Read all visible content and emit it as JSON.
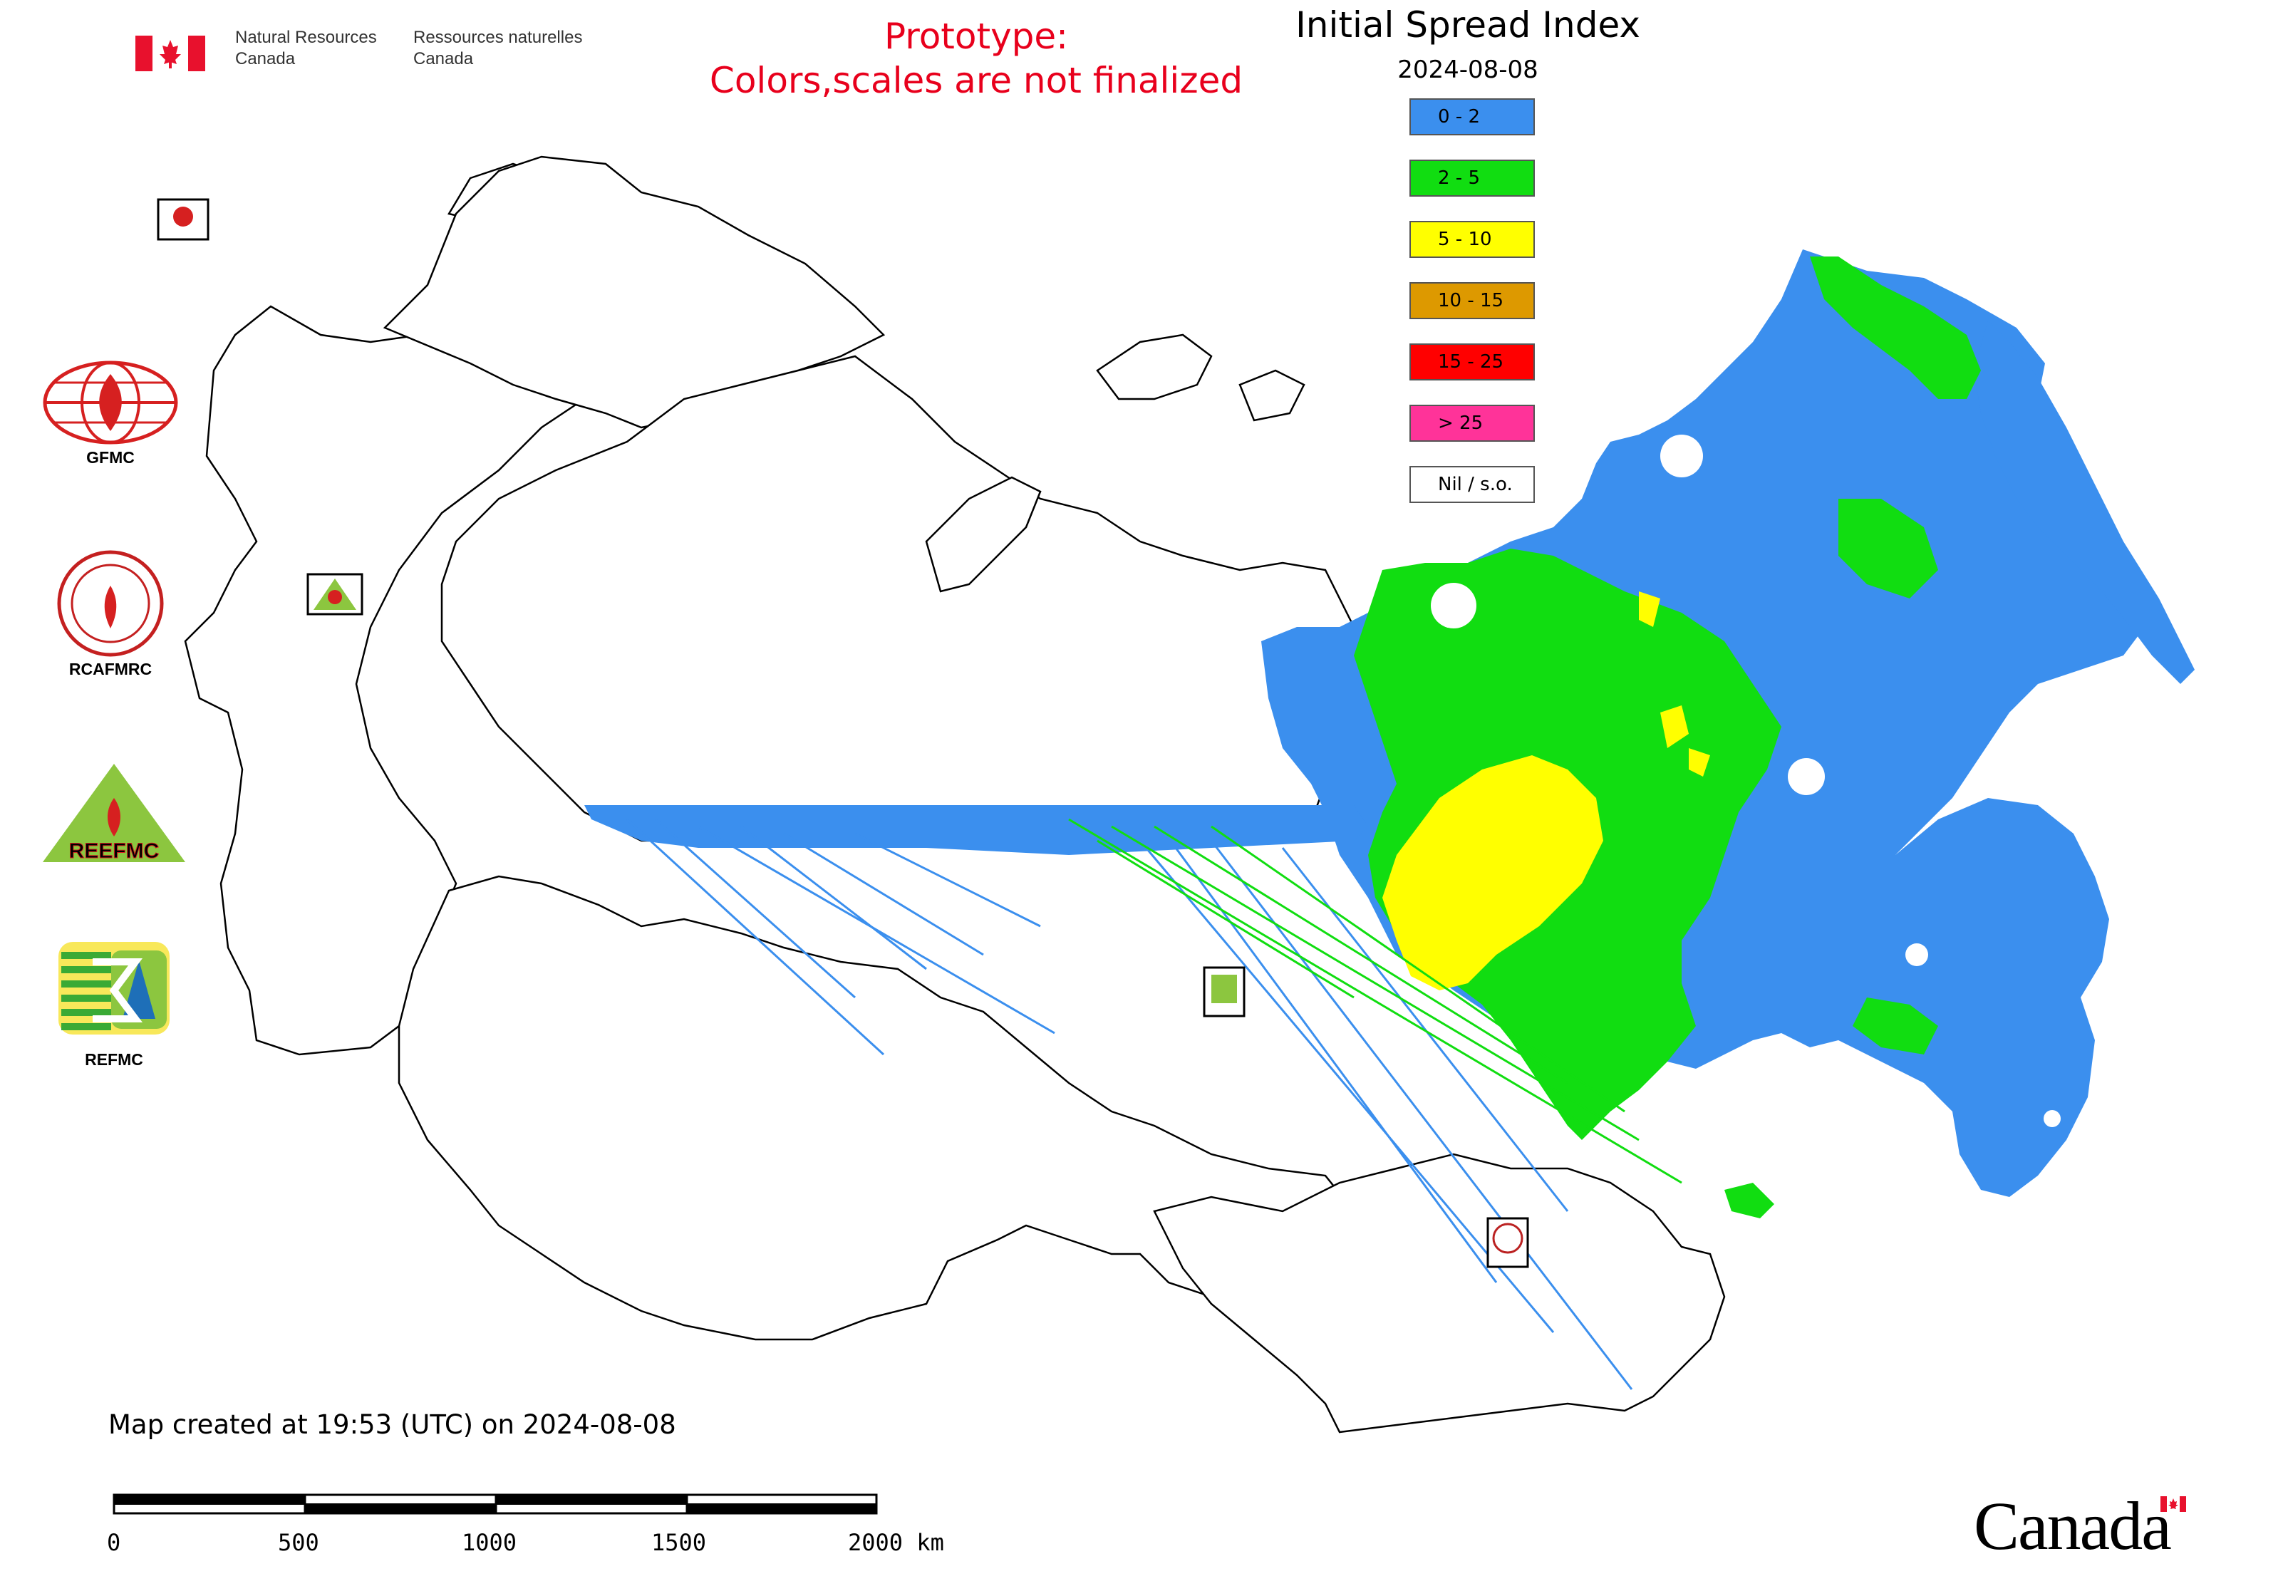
{
  "header": {
    "agency_en": [
      "Natural Resources",
      "Canada"
    ],
    "agency_fr": [
      "Ressources naturelles",
      "Canada"
    ],
    "prototype_lines": [
      "Prototype:",
      "Colors,scales are not finalized"
    ],
    "title": "Initial Spread Index",
    "date": "2024-08-08"
  },
  "legend": {
    "items": [
      {
        "label": "0 - 2",
        "color": "#3b8fee"
      },
      {
        "label": "2 - 5",
        "color": "#11dd11"
      },
      {
        "label": "5 - 10",
        "color": "#ffff00"
      },
      {
        "label": "10 - 15",
        "color": "#dd9900"
      },
      {
        "label": "15 - 25",
        "color": "#ff0000"
      },
      {
        "label": "> 25",
        "color": "#ff3399"
      },
      {
        "label": "Nil / s.o.",
        "color": "#ffffff"
      }
    ]
  },
  "logos": [
    {
      "name": "GFMC",
      "label": "GFMC"
    },
    {
      "name": "RCAFMRC",
      "label": "RCAFMRC"
    },
    {
      "name": "REEFMC",
      "label": "REEFMC"
    },
    {
      "name": "REFMC",
      "label": "REFMC"
    }
  ],
  "footer": {
    "created": "Map created at 19:53 (UTC) on 2024-08-08",
    "scale_labels": [
      "0",
      "500",
      "1000",
      "1500",
      "2000 km"
    ],
    "wordmark": "Canada"
  }
}
